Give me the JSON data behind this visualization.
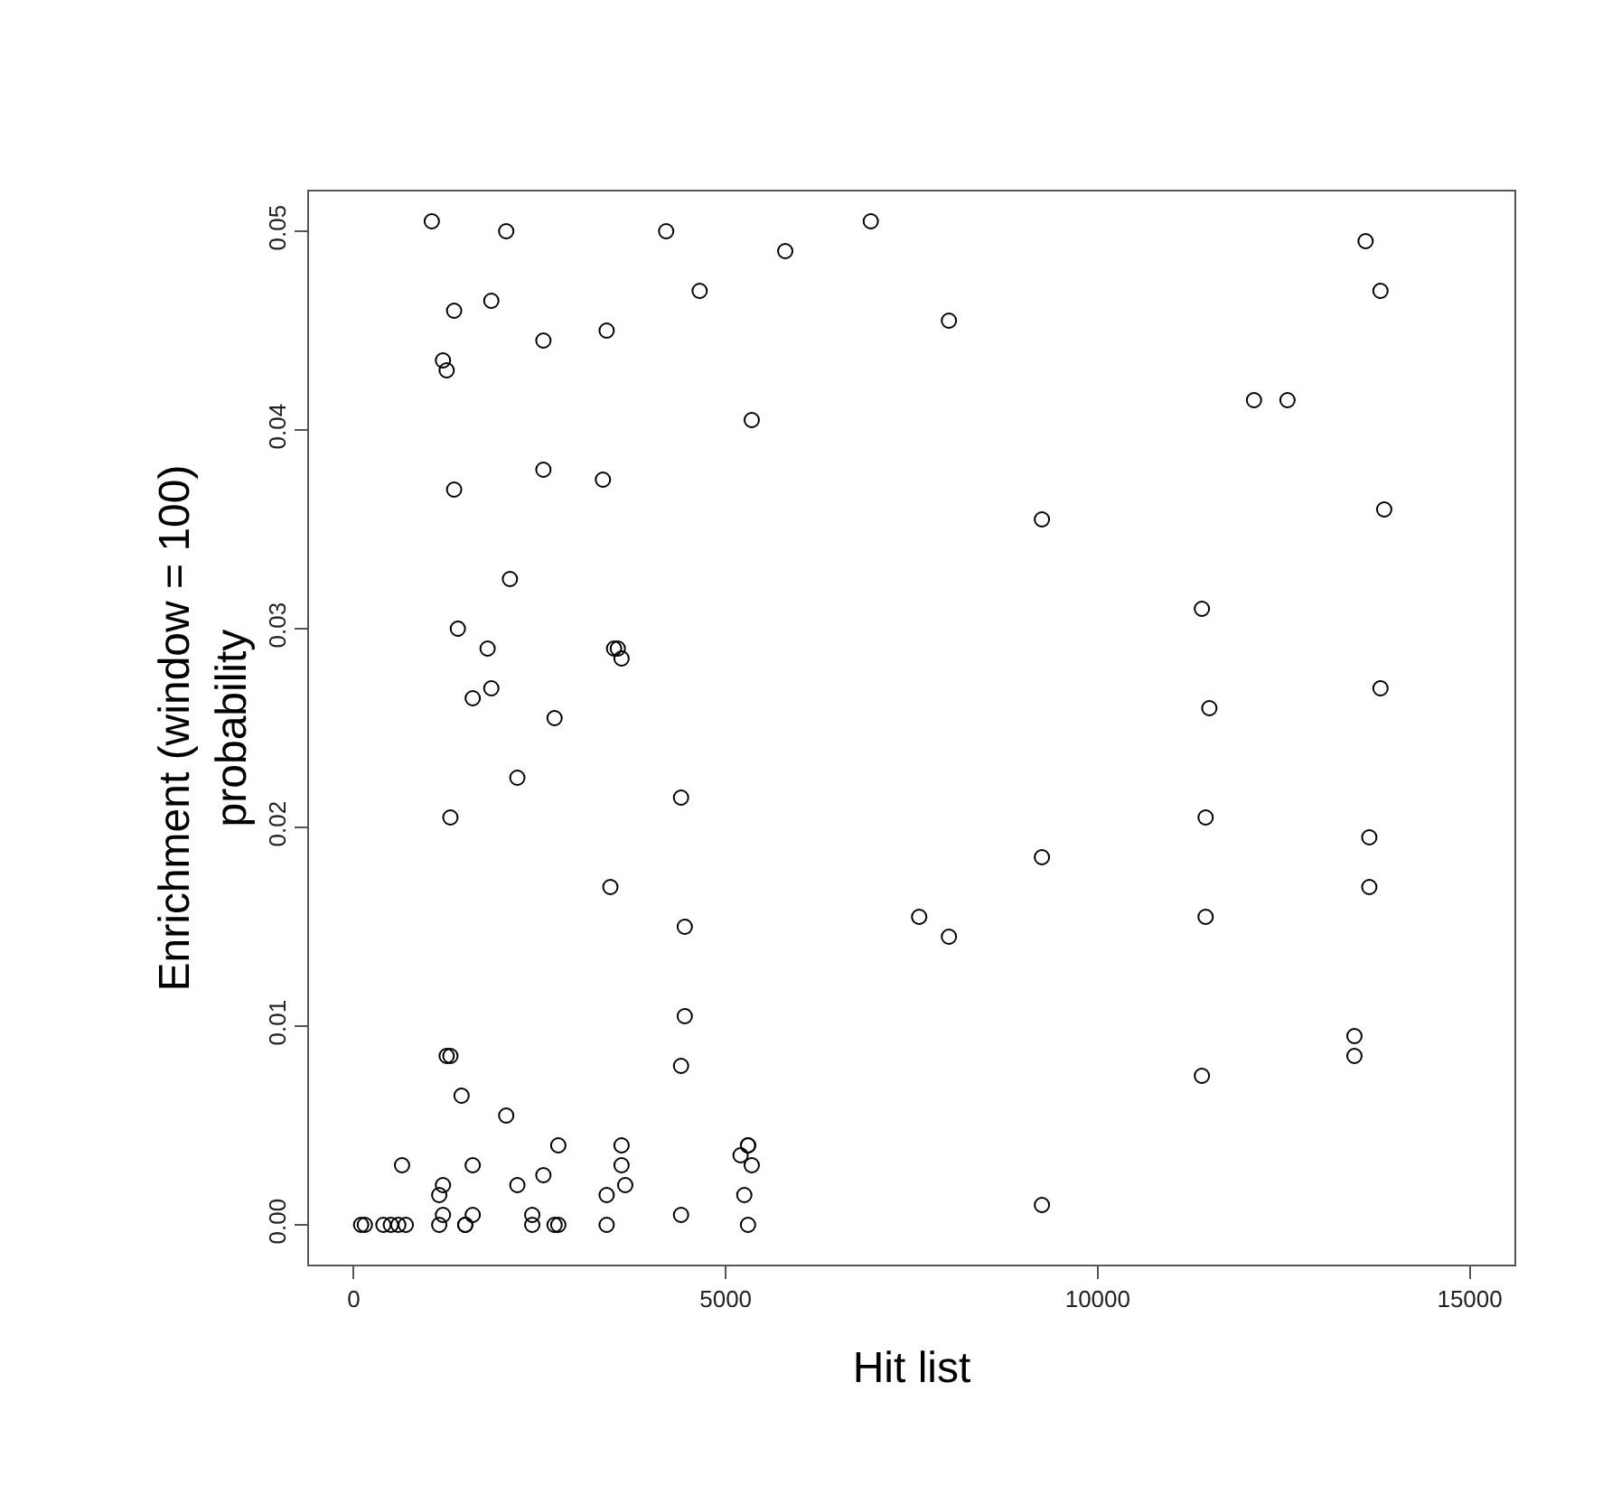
{
  "chart_data": {
    "type": "scatter",
    "xlabel": "Hit list",
    "ylabel": "Enrichment (window = 100)\nprobability",
    "xlim": [
      -600,
      15600
    ],
    "xticks": [
      0,
      5000,
      10000,
      15000
    ],
    "ylim": [
      -0.002,
      0.052
    ],
    "yticks": [
      {
        "value": 0,
        "label": "0.00"
      },
      {
        "value": 0.01,
        "label": "0.01"
      },
      {
        "value": 0.02,
        "label": "0.02"
      },
      {
        "value": 0.03,
        "label": "0.03"
      },
      {
        "value": 0.04,
        "label": "0.04"
      },
      {
        "value": 0.05,
        "label": "0.05"
      }
    ],
    "marker": "circle",
    "series": [
      {
        "color": "#000000",
        "x": [
          1050,
          2050,
          4200,
          5800,
          6950,
          4650,
          8000,
          1350,
          1850,
          2550,
          3400,
          1200,
          1250,
          5350,
          2550,
          3350,
          1350,
          2100,
          1400,
          1800,
          3500,
          3550,
          3600,
          1850,
          1600,
          2700,
          13600,
          13800,
          12100,
          12550,
          13850,
          9250,
          11400,
          13800,
          11500,
          2200,
          4400,
          1300,
          3450,
          4450,
          7600,
          8000,
          4450,
          1250,
          1300,
          4400,
          1450,
          2050,
          650,
          1600,
          2750,
          2550,
          2200,
          1200,
          1150,
          1200,
          1600,
          2400,
          3600,
          3600,
          3650,
          3400,
          4400,
          5300,
          5300,
          5200,
          5350,
          5250,
          100,
          150,
          400,
          500,
          600,
          700,
          1150,
          1500,
          1500,
          2400,
          2700,
          2750,
          3400,
          5300,
          11450,
          13650,
          9250,
          11450,
          13650,
          13450,
          13450,
          11400,
          9250
        ],
        "values": [
          0.0505,
          0.05,
          0.05,
          0.049,
          0.0505,
          0.047,
          0.0455,
          0.046,
          0.0465,
          0.0445,
          0.045,
          0.0435,
          0.043,
          0.0405,
          0.038,
          0.0375,
          0.037,
          0.0325,
          0.03,
          0.029,
          0.029,
          0.029,
          0.0285,
          0.027,
          0.0265,
          0.0255,
          0.0495,
          0.047,
          0.0415,
          0.0415,
          0.036,
          0.0355,
          0.031,
          0.027,
          0.026,
          0.0225,
          0.0215,
          0.0205,
          0.017,
          0.015,
          0.0155,
          0.0145,
          0.0105,
          0.0085,
          0.0085,
          0.008,
          0.0065,
          0.0055,
          0.003,
          0.003,
          0.004,
          0.0025,
          0.002,
          0.002,
          0.0015,
          0.0005,
          0.0005,
          0.0005,
          0.004,
          0.003,
          0.002,
          0.0015,
          0.0005,
          0.004,
          0.004,
          0.0035,
          0.003,
          0.0015,
          0,
          0,
          0,
          0,
          0,
          0,
          0,
          0,
          0,
          0,
          0,
          0,
          0,
          0,
          0.0205,
          0.0195,
          0.0185,
          0.0155,
          0.017,
          0.0095,
          0.0085,
          0.0075,
          0.001
        ]
      }
    ]
  }
}
